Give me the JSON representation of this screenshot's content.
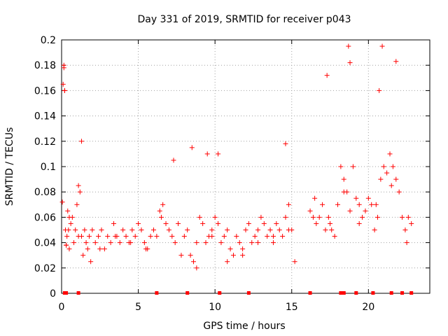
{
  "chart_data": {
    "type": "scatter",
    "title": "Day 331 of 2019, SRMTID for receiver p043",
    "xlabel": "GPS time / hours",
    "ylabel": "SRMTID / TECUs",
    "xlim": [
      0,
      24
    ],
    "ylim": [
      0,
      0.2
    ],
    "xticks": [
      0,
      5,
      10,
      15,
      20
    ],
    "xtick_labels": [
      "0",
      "5",
      "10",
      "15",
      "20"
    ],
    "yticks": [
      0,
      0.02,
      0.04,
      0.06,
      0.08,
      0.1,
      0.12,
      0.14,
      0.16,
      0.18,
      0.2
    ],
    "ytick_labels": [
      "0",
      "0.02",
      "0.04",
      "0.06",
      "0.08",
      "0.1",
      "0.12",
      "0.14",
      "0.16",
      "0.18",
      "0.2"
    ],
    "grid": true,
    "marker": "plus",
    "color": "#ff0000",
    "series": [
      {
        "name": "SRMTID",
        "x": [
          0.05,
          0.1,
          0.15,
          0.2,
          0.25,
          0.3,
          0.35,
          0.4,
          0.45,
          0.5,
          0.6,
          0.7,
          0.8,
          0.9,
          1.0,
          1.1,
          1.2,
          1.3,
          1.4,
          1.5,
          1.6,
          1.7,
          1.8,
          1.9,
          2.0,
          2.2,
          2.4,
          2.6,
          2.8,
          3.0,
          3.2,
          3.4,
          3.6,
          3.8,
          4.0,
          4.2,
          4.4,
          4.6,
          4.8,
          5.0,
          5.2,
          5.4,
          5.6,
          5.8,
          6.0,
          6.2,
          6.4,
          6.6,
          6.8,
          7.0,
          7.2,
          7.4,
          7.6,
          7.8,
          8.0,
          8.2,
          8.4,
          8.6,
          8.8,
          9.0,
          9.2,
          9.4,
          9.6,
          9.8,
          10.0,
          10.2,
          10.4,
          10.6,
          10.8,
          11.0,
          11.2,
          11.4,
          11.6,
          11.8,
          12.0,
          12.2,
          12.4,
          12.6,
          12.8,
          13.0,
          13.2,
          13.4,
          13.6,
          13.8,
          14.0,
          14.2,
          14.4,
          14.6,
          14.8,
          15.0,
          15.2,
          16.2,
          16.4,
          16.6,
          16.8,
          17.0,
          17.2,
          17.4,
          17.6,
          17.8,
          18.0,
          18.2,
          18.4,
          18.6,
          18.8,
          19.0,
          19.2,
          19.4,
          19.6,
          19.8,
          20.0,
          20.2,
          20.4,
          20.6,
          20.8,
          21.0,
          21.2,
          21.4,
          21.6,
          21.8,
          22.0,
          22.2,
          22.4,
          22.6,
          22.8,
          0.15,
          0.2,
          1.3,
          7.3,
          8.5,
          9.5,
          10.2,
          14.6,
          17.3,
          18.7,
          18.8,
          20.7,
          20.9,
          21.8,
          0.3,
          0.5,
          1.1,
          2.5,
          3.5,
          4.5,
          5.5,
          6.5,
          8.8,
          9.8,
          10.8,
          11.8,
          12.8,
          13.8,
          14.8,
          16.5,
          17.5,
          18.4,
          19.4,
          20.5,
          21.5,
          22.5
        ],
        "y": [
          0.072,
          0.165,
          0.178,
          0.16,
          0.05,
          0.038,
          0.045,
          0.065,
          0.05,
          0.035,
          0.055,
          0.06,
          0.04,
          0.05,
          0.07,
          0.085,
          0.08,
          0.045,
          0.03,
          0.05,
          0.04,
          0.035,
          0.045,
          0.025,
          0.05,
          0.04,
          0.045,
          0.05,
          0.035,
          0.045,
          0.04,
          0.055,
          0.045,
          0.04,
          0.05,
          0.045,
          0.04,
          0.05,
          0.045,
          0.055,
          0.05,
          0.04,
          0.035,
          0.045,
          0.05,
          0.045,
          0.065,
          0.07,
          0.055,
          0.05,
          0.045,
          0.04,
          0.055,
          0.03,
          0.045,
          0.05,
          0.03,
          0.025,
          0.04,
          0.06,
          0.055,
          0.04,
          0.045,
          0.05,
          0.06,
          0.055,
          0.04,
          0.045,
          0.05,
          0.035,
          0.03,
          0.045,
          0.04,
          0.035,
          0.05,
          0.055,
          0.04,
          0.045,
          0.05,
          0.06,
          0.055,
          0.045,
          0.05,
          0.04,
          0.055,
          0.05,
          0.045,
          0.06,
          0.07,
          0.05,
          0.025,
          0.065,
          0.06,
          0.055,
          0.06,
          0.07,
          0.05,
          0.06,
          0.05,
          0.045,
          0.07,
          0.1,
          0.09,
          0.08,
          0.065,
          0.1,
          0.075,
          0.07,
          0.06,
          0.065,
          0.075,
          0.07,
          0.05,
          0.06,
          0.09,
          0.1,
          0.095,
          0.11,
          0.1,
          0.09,
          0.08,
          0.06,
          0.05,
          0.06,
          0.055,
          0.18,
          0.16,
          0.12,
          0.105,
          0.115,
          0.11,
          0.11,
          0.118,
          0.172,
          0.195,
          0.182,
          0.16,
          0.195,
          0.183,
          0.038,
          0.06,
          0.045,
          0.035,
          0.045,
          0.04,
          0.035,
          0.06,
          0.02,
          0.045,
          0.025,
          0.03,
          0.04,
          0.045,
          0.05,
          0.075,
          0.055,
          0.08,
          0.055,
          0.07,
          0.085,
          0.04
        ],
        "zero_markers_x": [
          0.2,
          0.3,
          1.1,
          6.2,
          8.2,
          10.3,
          12.2,
          16.2,
          18.2,
          18.4,
          19.2,
          20.3,
          21.5,
          22.2,
          22.8
        ]
      }
    ]
  }
}
